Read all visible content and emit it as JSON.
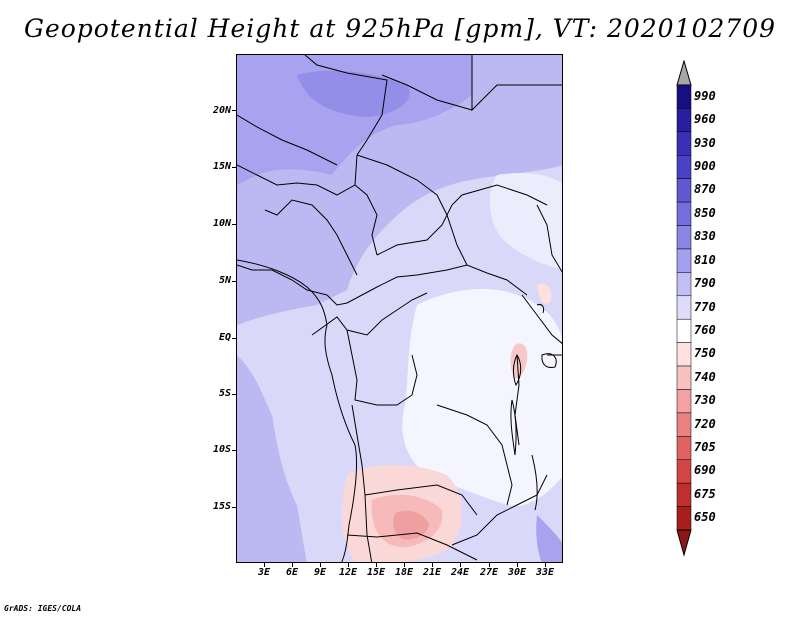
{
  "title": "Geopotential Height at 925hPa [gpm], VT: 2020102709",
  "credit": "GrADS: IGES/COLA",
  "lat_labels": [
    "20N",
    "15N",
    "10N",
    "5N",
    "EQ",
    "5S",
    "10S",
    "15S"
  ],
  "lon_labels": [
    "3E",
    "6E",
    "9E",
    "12E",
    "15E",
    "18E",
    "21E",
    "24E",
    "27E",
    "30E",
    "33E"
  ],
  "colorbar": {
    "levels": [
      "990",
      "960",
      "930",
      "900",
      "870",
      "850",
      "830",
      "810",
      "790",
      "770",
      "760",
      "750",
      "740",
      "730",
      "720",
      "705",
      "690",
      "675",
      "650"
    ],
    "colors": [
      "#170e80",
      "#2a1ea0",
      "#3a30b5",
      "#4a42c5",
      "#5f58d2",
      "#746edd",
      "#8a86e6",
      "#a4a0ee",
      "#c2bff4",
      "#dedcfa",
      "#ffffff",
      "#fde0e0",
      "#f9c2c2",
      "#f2a2a2",
      "#ea8181",
      "#e06262",
      "#d24545",
      "#c02f2f",
      "#a81e1e"
    ],
    "over_color": "#a6a6a6",
    "under_color": "#8c1717"
  }
}
